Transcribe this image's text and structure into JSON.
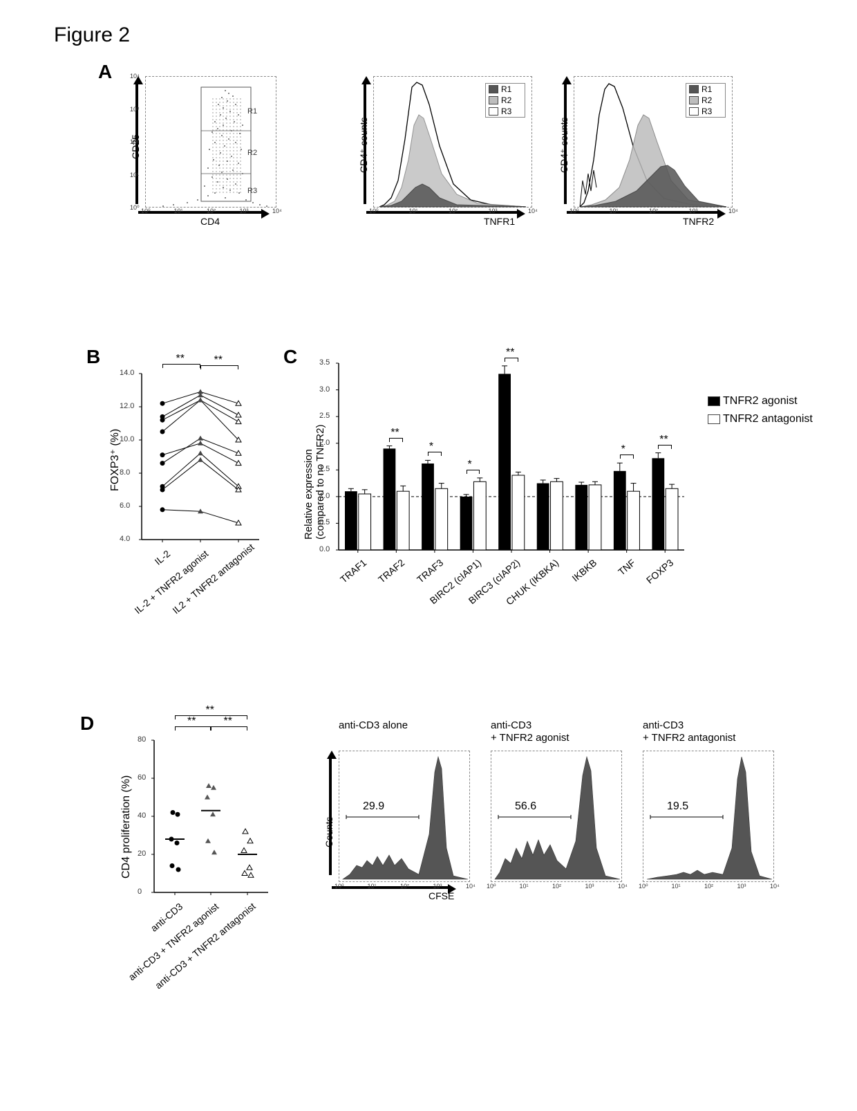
{
  "title": "Figure 2",
  "panels": {
    "A": {
      "label": "A",
      "scatter": {
        "y_axis": "CD25",
        "x_axis": "CD4",
        "regions": [
          "R1",
          "R2",
          "R3"
        ],
        "logticks": [
          "10⁰",
          "10¹",
          "10²",
          "10³",
          "10⁴"
        ]
      },
      "hist1": {
        "y_axis": "CD4⁺ counts",
        "x_axis": "TNFR1",
        "legend": [
          {
            "label": "R1",
            "color": "#555555"
          },
          {
            "label": "R2",
            "color": "#bdbdbd"
          },
          {
            "label": "R3",
            "color": "#ffffff"
          }
        ]
      },
      "hist2": {
        "y_axis": "CD4⁺ counts",
        "x_axis": "TNFR2",
        "legend": [
          {
            "label": "R1",
            "color": "#555555"
          },
          {
            "label": "R2",
            "color": "#bdbdbd"
          },
          {
            "label": "R3",
            "color": "#ffffff"
          }
        ]
      }
    },
    "B": {
      "label": "B",
      "y_axis": "FOXP3⁺ (%)",
      "y_ticks": [
        "4.0",
        "6.0",
        "8.0",
        "10.0",
        "12.0",
        "14.0"
      ],
      "y_min": 4.0,
      "y_max": 14.0,
      "conditions": [
        "IL-2",
        "IL-2 + TNFR2 agonist",
        "IL2 + TNFR2 antagonist"
      ],
      "series": [
        [
          12.2,
          12.9,
          12.2
        ],
        [
          11.4,
          12.7,
          11.5
        ],
        [
          11.2,
          12.4,
          11.1
        ],
        [
          10.5,
          12.4,
          10.0
        ],
        [
          8.6,
          10.1,
          9.2
        ],
        [
          9.1,
          9.8,
          8.6
        ],
        [
          7.2,
          9.2,
          7.2
        ],
        [
          7.0,
          8.8,
          7.0
        ],
        [
          5.8,
          5.7,
          5.0
        ]
      ],
      "markers": [
        "circle",
        "triangle",
        "open-triangle"
      ],
      "sig": [
        {
          "from": 0,
          "to": 1,
          "label": "**"
        },
        {
          "from": 1,
          "to": 2,
          "label": "**"
        }
      ]
    },
    "C": {
      "label": "C",
      "y_axis": "Relative expression\n(compared to no TNFR2)",
      "y_ticks": [
        "0.0",
        "0.5",
        "1.0",
        "1.5",
        "2.0",
        "2.5",
        "3.0",
        "3.5"
      ],
      "y_min": 0.0,
      "y_max": 3.5,
      "genes": [
        "TRAF1",
        "TRAF2",
        "TRAF3",
        "BIRC2 (cIAP1)",
        "BIRC3 (cIAP2)",
        "CHUK (IKBKA)",
        "IKBKB",
        "TNF",
        "FOXP3"
      ],
      "legend": [
        {
          "label": "TNFR2 agonist",
          "color": "#000000"
        },
        {
          "label": "TNFR2 antagonist",
          "color": "#ffffff"
        }
      ],
      "agonist": [
        1.1,
        1.9,
        1.62,
        1.0,
        3.3,
        1.25,
        1.22,
        1.48,
        1.72
      ],
      "antagonist": [
        1.05,
        1.1,
        1.15,
        1.28,
        1.4,
        1.28,
        1.22,
        1.1,
        1.15
      ],
      "ag_err": [
        0.05,
        0.05,
        0.06,
        0.04,
        0.15,
        0.06,
        0.05,
        0.15,
        0.1
      ],
      "ant_err": [
        0.08,
        0.1,
        0.1,
        0.07,
        0.06,
        0.06,
        0.06,
        0.15,
        0.08
      ],
      "sig": [
        {
          "i": 1,
          "label": "**"
        },
        {
          "i": 2,
          "label": "*"
        },
        {
          "i": 3,
          "label": "*"
        },
        {
          "i": 4,
          "label": "**"
        },
        {
          "i": 7,
          "label": "*"
        },
        {
          "i": 8,
          "label": "**"
        }
      ],
      "baseline_dash_y": 1.0
    },
    "D": {
      "label": "D",
      "y_axis": "CD4 proliferation (%)",
      "y_ticks": [
        "0",
        "20",
        "40",
        "60",
        "80"
      ],
      "y_min": 0,
      "y_max": 80,
      "conditions": [
        "anti-CD3",
        "anti-CD3 + TNFR2 agonist",
        "anti-CD3 + TNFR2 antagonist"
      ],
      "points": {
        "0": [
          42,
          41,
          28,
          26,
          14,
          12
        ],
        "1": [
          56,
          55,
          50,
          41,
          27,
          21
        ],
        "2": [
          32,
          27,
          22,
          13,
          10,
          9
        ]
      },
      "medians": [
        28,
        43,
        20
      ],
      "sig": [
        {
          "from": 0,
          "to": 1,
          "label": "**",
          "level": 0
        },
        {
          "from": 1,
          "to": 2,
          "label": "**",
          "level": 0
        },
        {
          "from": 0,
          "to": 2,
          "label": "**",
          "level": 1
        }
      ],
      "hist_titles": [
        "anti-CD3 alone",
        "anti-CD3\n+ TNFR2 agonist",
        "anti-CD3\n+ TNFR2 antagonist"
      ],
      "hist_x_axis": "CFSE",
      "hist_y_axis": "Counts",
      "hist_percent": [
        "29.9",
        "56.6",
        "19.5"
      ]
    }
  }
}
